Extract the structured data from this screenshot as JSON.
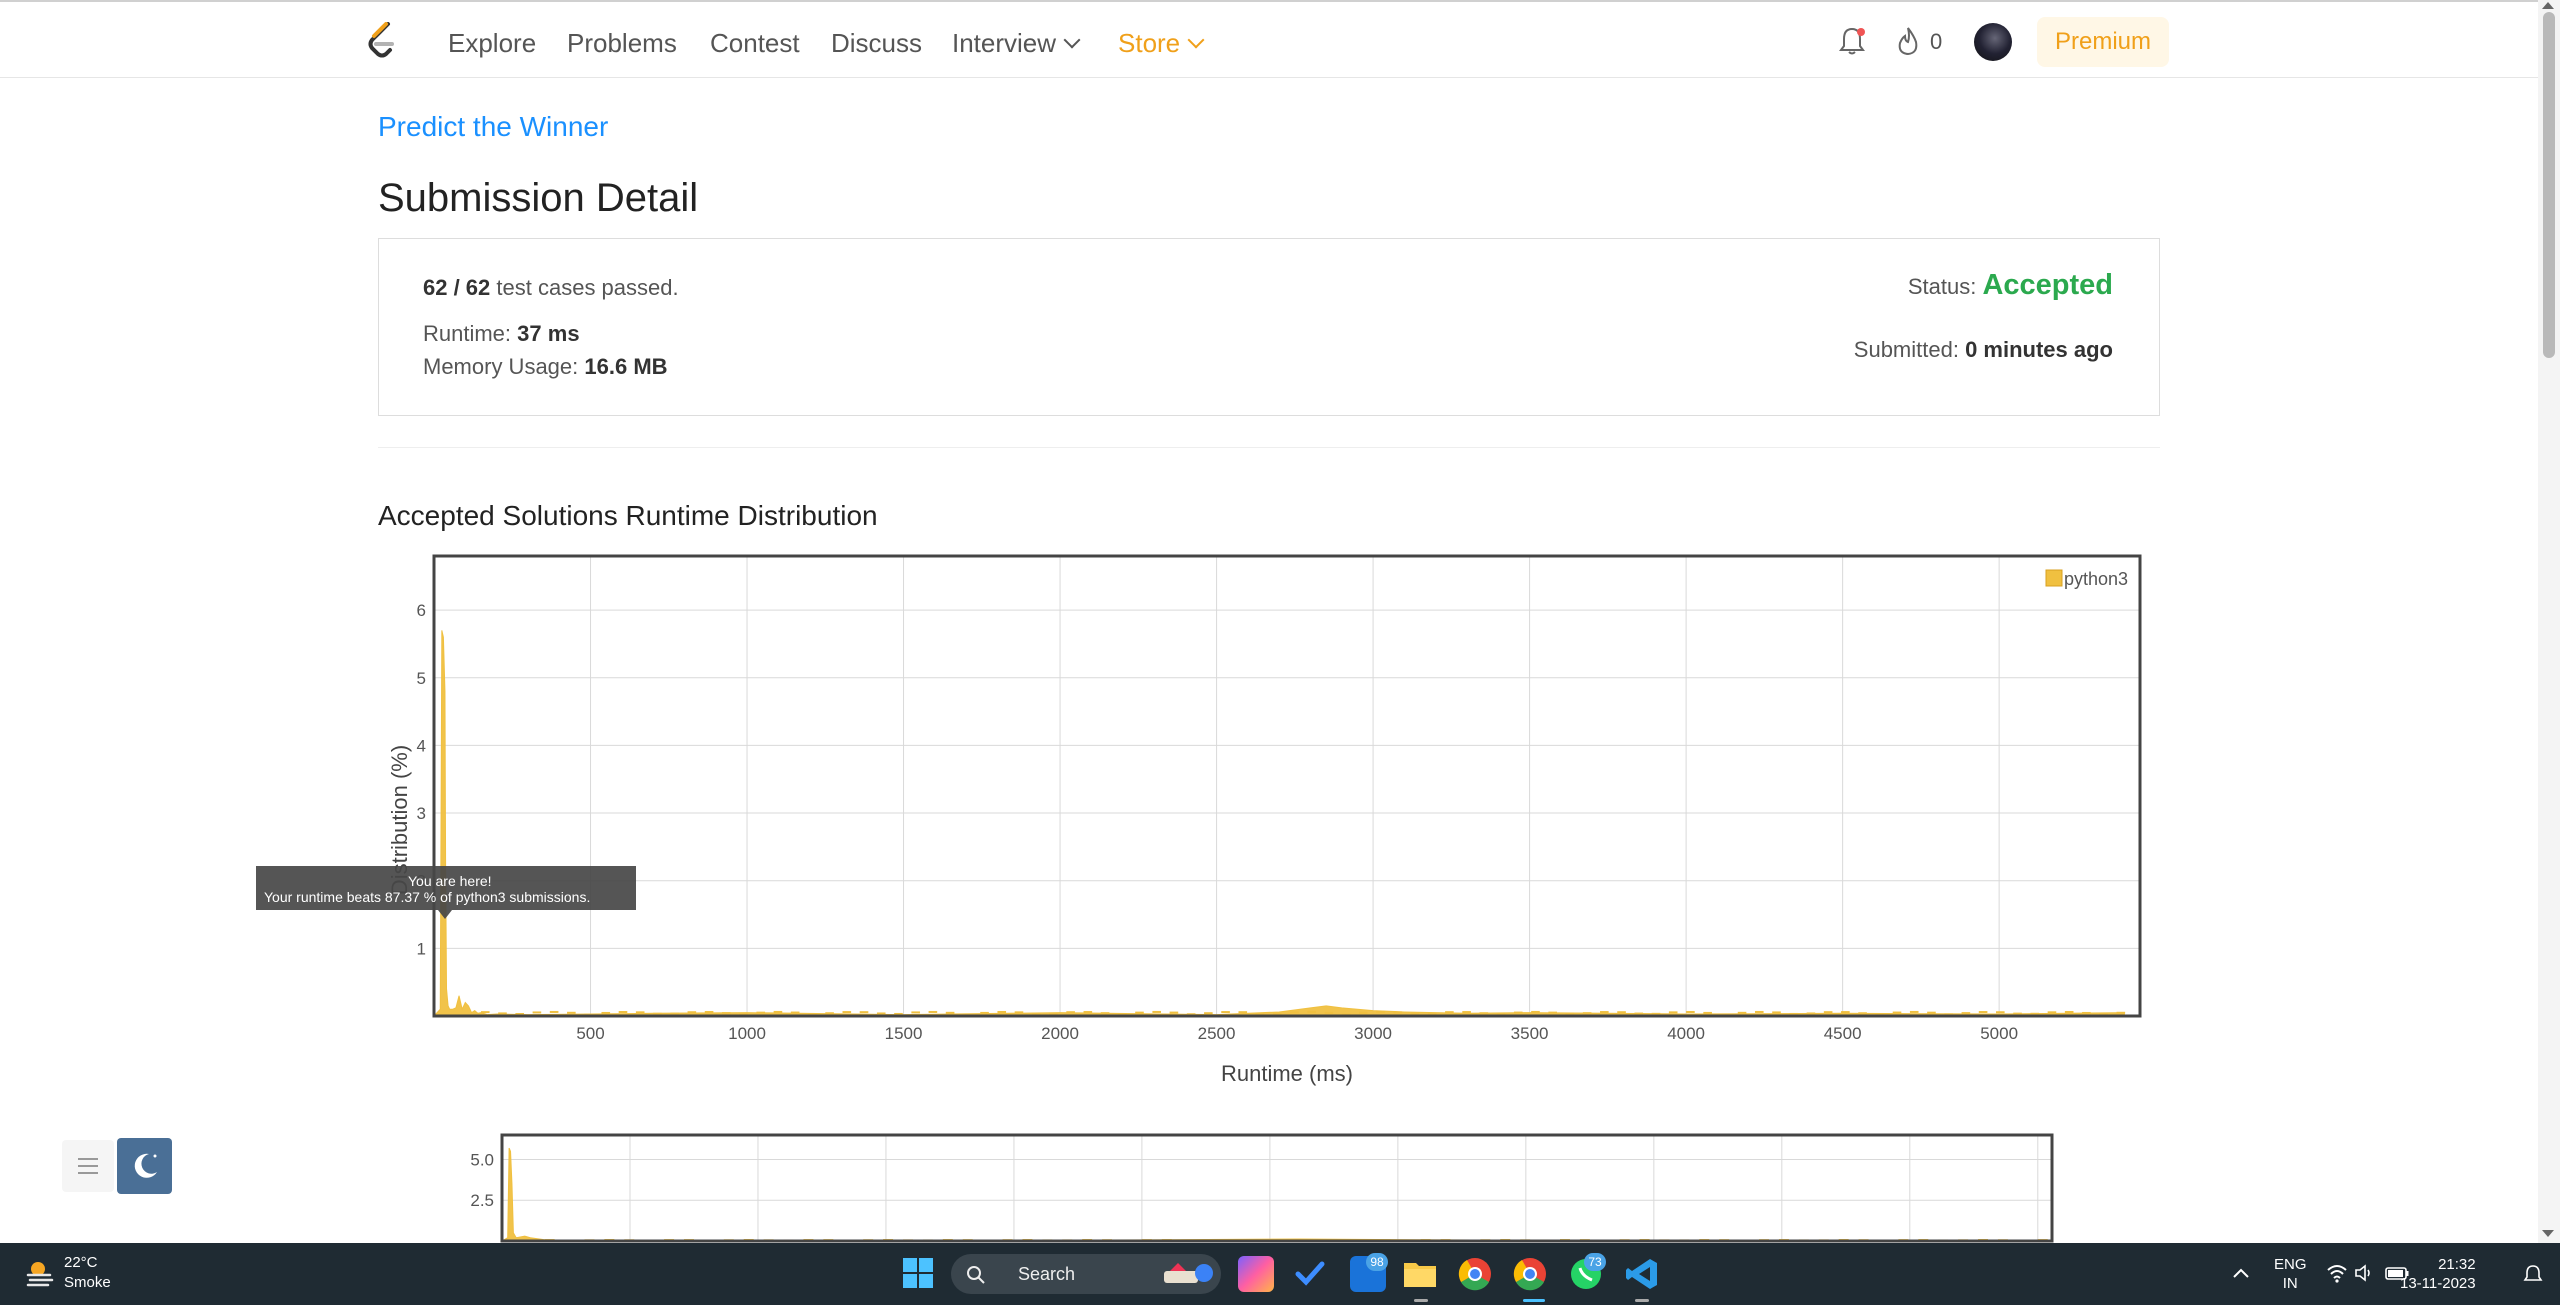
{
  "nav": {
    "items": [
      "Explore",
      "Problems",
      "Contest",
      "Discuss",
      "Interview",
      "Store"
    ],
    "streak_count": "0",
    "premium_label": "Premium"
  },
  "problem": {
    "title": "Predict the Winner"
  },
  "page": {
    "title": "Submission Detail"
  },
  "submission": {
    "passed": "62 / 62",
    "passed_suffix": "test cases passed.",
    "runtime_label": "Runtime:",
    "runtime": "37 ms",
    "memory_label": "Memory Usage:",
    "memory": "16.6 MB",
    "status_label": "Status:",
    "status": "Accepted",
    "submitted_label": "Submitted:",
    "submitted": "0 minutes ago"
  },
  "chart_section": {
    "title": "Accepted Solutions Runtime Distribution"
  },
  "tooltip": {
    "line1": "You are here!",
    "line2": "Your runtime beats 87.37 % of python3 submissions."
  },
  "chart_data": [
    {
      "type": "area",
      "xlabel": "Runtime (ms)",
      "ylabel": "Distribution (%)",
      "xlim": [
        0,
        5450
      ],
      "ylim": [
        0,
        6.8
      ],
      "xticks": [
        500,
        1000,
        1500,
        2000,
        2500,
        3000,
        3500,
        4000,
        4500,
        5000
      ],
      "yticks": [
        1,
        2,
        3,
        4,
        5,
        6
      ],
      "grid": true,
      "legend_position": "top-right",
      "series": [
        {
          "name": "python3",
          "color": "#f0c040",
          "x": [
            0,
            20,
            25,
            30,
            35,
            37,
            40,
            45,
            50,
            60,
            70,
            80,
            90,
            100,
            110,
            120,
            130,
            140,
            150,
            170,
            200,
            300,
            500,
            700,
            1000,
            1500,
            2000,
            2500,
            2700,
            2800,
            2850,
            2900,
            2950,
            3000,
            3100,
            3300,
            3500,
            4000,
            4500,
            5000,
            5400
          ],
          "values": [
            0,
            0.1,
            5.7,
            5.6,
            4.8,
            2.3,
            0.4,
            0.15,
            0.1,
            0.1,
            0.12,
            0.3,
            0.1,
            0.2,
            0.15,
            0.05,
            0.08,
            0.04,
            0.05,
            0.02,
            0.03,
            0.02,
            0.03,
            0.04,
            0.05,
            0.02,
            0.05,
            0.02,
            0.06,
            0.12,
            0.15,
            0.12,
            0.1,
            0.08,
            0.06,
            0.04,
            0.05,
            0.03,
            0.04,
            0.03,
            0.05
          ]
        }
      ]
    },
    {
      "type": "area",
      "xlim": [
        0,
        5450
      ],
      "ylim": [
        0,
        6.5
      ],
      "yticks": [
        2.5,
        5.0
      ],
      "grid": true,
      "series": [
        {
          "color": "#f0c040",
          "x": [
            0,
            20,
            25,
            30,
            35,
            40,
            50,
            80,
            100,
            150,
            200,
            500,
            1000,
            2000,
            2800,
            3000,
            3500,
            4000,
            5000,
            5400
          ],
          "values": [
            0,
            0.2,
            5.7,
            5.5,
            3.5,
            0.5,
            0.2,
            0.3,
            0.2,
            0.08,
            0.05,
            0.04,
            0.05,
            0.05,
            0.12,
            0.1,
            0.05,
            0.04,
            0.04,
            0.05
          ]
        }
      ]
    }
  ],
  "taskbar": {
    "weather_temp": "22°C",
    "weather_cond": "Smoke",
    "search_placeholder": "Search",
    "badge_outlook": "98",
    "badge_whatsapp": "73",
    "lang_line1": "ENG",
    "lang_line2": "IN",
    "time": "21:32",
    "date": "13-11-2023"
  }
}
